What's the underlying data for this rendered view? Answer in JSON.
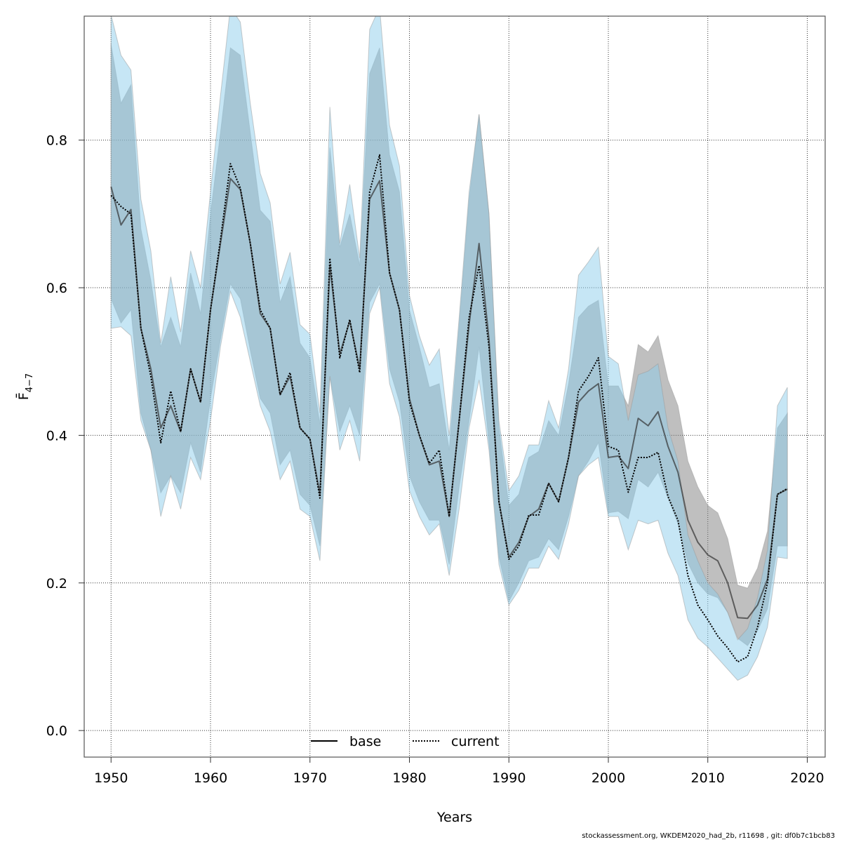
{
  "chart_data": {
    "type": "line",
    "title": "",
    "xlabel": "Years",
    "ylabel": "F̄",
    "ylabel_subscript": "4−7",
    "xlim": [
      1947.3,
      2021.8
    ],
    "ylim": [
      -0.036,
      0.968
    ],
    "xticks": [
      1950,
      1960,
      1970,
      1980,
      1990,
      2000,
      2010,
      2020
    ],
    "yticks": [
      0.0,
      0.2,
      0.4,
      0.6,
      0.8
    ],
    "ytick_labels": [
      "0.0",
      "0.2",
      "0.4",
      "0.6",
      "0.8"
    ],
    "grid": true,
    "legend_placement": "bottom-center",
    "x": [
      1950,
      1951,
      1952,
      1953,
      1954,
      1955,
      1956,
      1957,
      1958,
      1959,
      1960,
      1961,
      1962,
      1963,
      1964,
      1965,
      1966,
      1967,
      1968,
      1969,
      1970,
      1971,
      1972,
      1973,
      1974,
      1975,
      1976,
      1977,
      1978,
      1979,
      1980,
      1981,
      1982,
      1983,
      1984,
      1985,
      1986,
      1987,
      1988,
      1989,
      1990,
      1991,
      1992,
      1993,
      1994,
      1995,
      1996,
      1997,
      1998,
      1999,
      2000,
      2001,
      2002,
      2003,
      2004,
      2005,
      2006,
      2007,
      2008,
      2009,
      2010,
      2011,
      2012,
      2013,
      2014,
      2015,
      2016,
      2017,
      2018
    ],
    "series": [
      {
        "name": "base",
        "line": "solid",
        "band_color": "#7f7f7f",
        "values": [
          0.737,
          0.685,
          0.706,
          0.545,
          0.49,
          0.41,
          0.44,
          0.405,
          0.49,
          0.445,
          0.57,
          0.66,
          0.748,
          0.733,
          0.66,
          0.565,
          0.545,
          0.455,
          0.48,
          0.41,
          0.395,
          0.32,
          0.63,
          0.51,
          0.555,
          0.49,
          0.72,
          0.745,
          0.62,
          0.57,
          0.45,
          0.4,
          0.36,
          0.365,
          0.29,
          0.42,
          0.55,
          0.66,
          0.53,
          0.31,
          0.235,
          0.255,
          0.29,
          0.3,
          0.335,
          0.31,
          0.37,
          0.445,
          0.46,
          0.47,
          0.37,
          0.372,
          0.355,
          0.423,
          0.413,
          0.432,
          0.385,
          0.35,
          0.285,
          0.255,
          0.238,
          0.23,
          0.2,
          0.153,
          0.152,
          0.17,
          0.205,
          0.32,
          0.327
        ],
        "upper": [
          0.93,
          0.85,
          0.875,
          0.68,
          0.61,
          0.52,
          0.56,
          0.52,
          0.62,
          0.565,
          0.7,
          0.81,
          0.925,
          0.915,
          0.81,
          0.705,
          0.69,
          0.58,
          0.615,
          0.525,
          0.505,
          0.415,
          0.79,
          0.655,
          0.7,
          0.63,
          0.89,
          0.925,
          0.78,
          0.73,
          0.57,
          0.52,
          0.465,
          0.47,
          0.38,
          0.55,
          0.72,
          0.835,
          0.7,
          0.41,
          0.305,
          0.32,
          0.37,
          0.378,
          0.42,
          0.4,
          0.47,
          0.56,
          0.575,
          0.583,
          0.467,
          0.467,
          0.44,
          0.523,
          0.513,
          0.535,
          0.475,
          0.44,
          0.365,
          0.33,
          0.305,
          0.295,
          0.26,
          0.197,
          0.193,
          0.22,
          0.27,
          0.41,
          0.43
        ],
        "lower": [
          0.585,
          0.552,
          0.57,
          0.43,
          0.38,
          0.322,
          0.345,
          0.322,
          0.39,
          0.35,
          0.45,
          0.53,
          0.605,
          0.585,
          0.515,
          0.45,
          0.43,
          0.36,
          0.38,
          0.32,
          0.305,
          0.25,
          0.48,
          0.405,
          0.44,
          0.4,
          0.58,
          0.605,
          0.49,
          0.445,
          0.345,
          0.31,
          0.285,
          0.285,
          0.225,
          0.33,
          0.42,
          0.52,
          0.39,
          0.235,
          0.175,
          0.2,
          0.23,
          0.235,
          0.26,
          0.245,
          0.29,
          0.345,
          0.365,
          0.39,
          0.295,
          0.297,
          0.287,
          0.34,
          0.33,
          0.35,
          0.315,
          0.28,
          0.227,
          0.2,
          0.185,
          0.18,
          0.16,
          0.125,
          0.115,
          0.135,
          0.165,
          0.25,
          0.25
        ]
      },
      {
        "name": "current",
        "line": "dotted",
        "band_color": "#8dcdeb",
        "values": [
          0.725,
          0.71,
          0.7,
          0.545,
          0.48,
          0.39,
          0.46,
          0.405,
          0.49,
          0.445,
          0.57,
          0.665,
          0.768,
          0.735,
          0.66,
          0.57,
          0.545,
          0.455,
          0.485,
          0.41,
          0.395,
          0.315,
          0.64,
          0.505,
          0.557,
          0.485,
          0.73,
          0.78,
          0.62,
          0.57,
          0.445,
          0.4,
          0.362,
          0.38,
          0.29,
          0.42,
          0.56,
          0.63,
          0.52,
          0.31,
          0.232,
          0.25,
          0.292,
          0.292,
          0.335,
          0.31,
          0.37,
          0.46,
          0.48,
          0.505,
          0.385,
          0.38,
          0.323,
          0.37,
          0.37,
          0.377,
          0.317,
          0.285,
          0.21,
          0.17,
          0.15,
          0.128,
          0.112,
          0.093,
          0.1,
          0.14,
          0.2,
          0.32,
          0.328
        ],
        "upper": [
          0.97,
          0.915,
          0.895,
          0.72,
          0.65,
          0.525,
          0.615,
          0.54,
          0.65,
          0.6,
          0.73,
          0.86,
          0.98,
          0.96,
          0.85,
          0.755,
          0.715,
          0.605,
          0.648,
          0.55,
          0.537,
          0.43,
          0.845,
          0.66,
          0.74,
          0.64,
          0.95,
          0.98,
          0.82,
          0.765,
          0.59,
          0.535,
          0.495,
          0.517,
          0.4,
          0.56,
          0.73,
          0.835,
          0.7,
          0.42,
          0.325,
          0.345,
          0.387,
          0.387,
          0.447,
          0.41,
          0.49,
          0.617,
          0.635,
          0.655,
          0.507,
          0.497,
          0.42,
          0.482,
          0.487,
          0.497,
          0.41,
          0.365,
          0.265,
          0.23,
          0.2,
          0.185,
          0.16,
          0.123,
          0.138,
          0.18,
          0.245,
          0.44,
          0.465
        ],
        "lower": [
          0.545,
          0.547,
          0.535,
          0.42,
          0.38,
          0.29,
          0.345,
          0.3,
          0.37,
          0.34,
          0.42,
          0.52,
          0.595,
          0.56,
          0.5,
          0.44,
          0.405,
          0.34,
          0.365,
          0.3,
          0.29,
          0.23,
          0.48,
          0.38,
          0.42,
          0.365,
          0.565,
          0.6,
          0.47,
          0.425,
          0.325,
          0.29,
          0.265,
          0.28,
          0.21,
          0.3,
          0.41,
          0.475,
          0.38,
          0.225,
          0.17,
          0.19,
          0.22,
          0.22,
          0.25,
          0.232,
          0.28,
          0.345,
          0.36,
          0.37,
          0.29,
          0.29,
          0.245,
          0.285,
          0.28,
          0.285,
          0.24,
          0.21,
          0.15,
          0.125,
          0.113,
          0.098,
          0.083,
          0.068,
          0.075,
          0.1,
          0.14,
          0.235,
          0.233
        ]
      }
    ],
    "legend": [
      "base",
      "current"
    ]
  },
  "footer": "stockassessment.org, WKDEM2020_had_2b, r11698 , git: df0b7c1bcb83"
}
